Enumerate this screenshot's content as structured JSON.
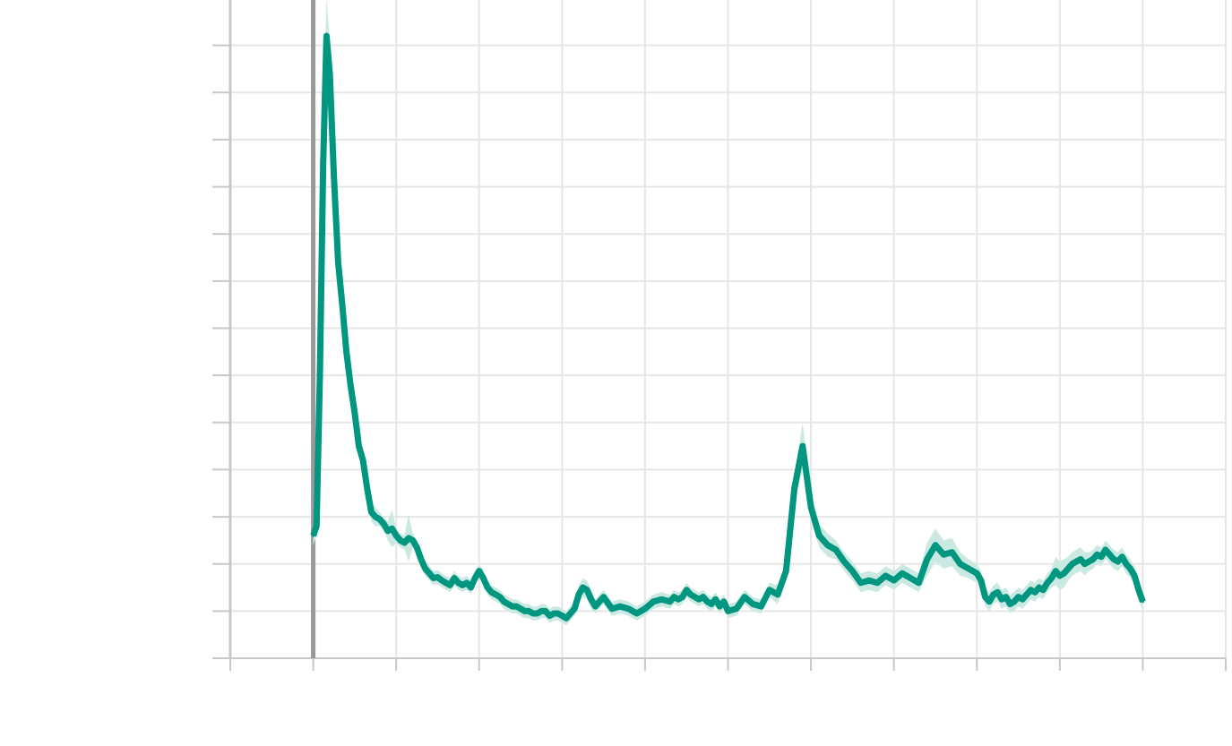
{
  "chart_data": {
    "type": "line",
    "title": "",
    "xlabel": "",
    "ylabel": "",
    "xlim": [
      -1,
      11
    ],
    "ylim": [
      0,
      14
    ],
    "grid": true,
    "legend": "none",
    "series": [
      {
        "color": "#00967f",
        "band_color": "#cbe9e3",
        "x": [
          0.0,
          0.04,
          0.08,
          0.12,
          0.16,
          0.2,
          0.25,
          0.3,
          0.35,
          0.4,
          0.45,
          0.5,
          0.55,
          0.6,
          0.65,
          0.7,
          0.75,
          0.8,
          0.85,
          0.9,
          0.95,
          1.0,
          1.05,
          1.1,
          1.15,
          1.2,
          1.25,
          1.3,
          1.35,
          1.4,
          1.45,
          1.5,
          1.55,
          1.6,
          1.65,
          1.7,
          1.75,
          1.8,
          1.85,
          1.9,
          1.95,
          2.0,
          2.05,
          2.1,
          2.15,
          2.2,
          2.25,
          2.3,
          2.35,
          2.4,
          2.45,
          2.5,
          2.55,
          2.6,
          2.65,
          2.7,
          2.75,
          2.8,
          2.85,
          2.9,
          2.95,
          3.0,
          3.05,
          3.1,
          3.15,
          3.2,
          3.25,
          3.3,
          3.35,
          3.4,
          3.5,
          3.6,
          3.7,
          3.8,
          3.9,
          4.0,
          4.1,
          4.2,
          4.3,
          4.35,
          4.4,
          4.45,
          4.5,
          4.55,
          4.6,
          4.65,
          4.7,
          4.75,
          4.8,
          4.85,
          4.9,
          4.95,
          5.0,
          5.1,
          5.2,
          5.3,
          5.4,
          5.5,
          5.6,
          5.7,
          5.8,
          5.9,
          6.0,
          6.1,
          6.2,
          6.3,
          6.4,
          6.5,
          6.6,
          6.7,
          6.8,
          6.9,
          7.0,
          7.1,
          7.2,
          7.3,
          7.4,
          7.5,
          7.6,
          7.7,
          7.8,
          7.9,
          8.0,
          8.05,
          8.1,
          8.15,
          8.2,
          8.25,
          8.3,
          8.35,
          8.4,
          8.45,
          8.5,
          8.55,
          8.6,
          8.65,
          8.7,
          8.75,
          8.8,
          8.85,
          8.9,
          8.95,
          9.0,
          9.05,
          9.1,
          9.15,
          9.2,
          9.25,
          9.3,
          9.35,
          9.4,
          9.45,
          9.5,
          9.55,
          9.6,
          9.65,
          9.7,
          9.75,
          9.8,
          9.85,
          9.9,
          9.95,
          10.0
        ],
        "values": [
          2.6,
          2.8,
          6.0,
          10.5,
          13.2,
          12.4,
          10.2,
          8.4,
          7.5,
          6.5,
          5.8,
          5.2,
          4.5,
          4.2,
          3.6,
          3.1,
          3.0,
          2.95,
          2.85,
          2.7,
          2.75,
          2.6,
          2.5,
          2.45,
          2.55,
          2.5,
          2.35,
          2.1,
          1.9,
          1.8,
          1.7,
          1.72,
          1.65,
          1.6,
          1.55,
          1.7,
          1.6,
          1.55,
          1.6,
          1.5,
          1.7,
          1.85,
          1.7,
          1.5,
          1.4,
          1.35,
          1.3,
          1.2,
          1.15,
          1.1,
          1.1,
          1.05,
          1.0,
          1.0,
          0.95,
          0.95,
          1.0,
          1.0,
          0.9,
          0.95,
          0.95,
          0.9,
          0.85,
          0.95,
          1.05,
          1.35,
          1.5,
          1.45,
          1.25,
          1.1,
          1.3,
          1.05,
          1.1,
          1.05,
          0.95,
          1.05,
          1.2,
          1.25,
          1.2,
          1.3,
          1.25,
          1.3,
          1.45,
          1.35,
          1.3,
          1.25,
          1.3,
          1.2,
          1.15,
          1.25,
          1.1,
          1.2,
          1.0,
          1.05,
          1.3,
          1.15,
          1.1,
          1.45,
          1.35,
          1.85,
          3.6,
          4.5,
          3.2,
          2.6,
          2.4,
          2.3,
          2.05,
          1.85,
          1.6,
          1.65,
          1.6,
          1.75,
          1.65,
          1.8,
          1.7,
          1.6,
          2.1,
          2.4,
          2.2,
          2.25,
          2.0,
          1.9,
          1.8,
          1.65,
          1.3,
          1.2,
          1.35,
          1.4,
          1.25,
          1.3,
          1.15,
          1.2,
          1.3,
          1.25,
          1.35,
          1.45,
          1.4,
          1.5,
          1.45,
          1.6,
          1.7,
          1.85,
          1.75,
          1.8,
          1.9,
          2.0,
          2.05,
          2.1,
          2.0,
          2.05,
          2.1,
          2.2,
          2.15,
          2.3,
          2.2,
          2.1,
          2.05,
          2.15,
          2.0,
          1.9,
          1.75,
          1.45,
          1.2
        ],
        "band_width": [
          0.2,
          0.2,
          0.6,
          0.9,
          0.8,
          0.7,
          0.6,
          0.5,
          0.4,
          0.35,
          0.3,
          0.3,
          0.25,
          0.25,
          0.2,
          0.2,
          0.2,
          0.15,
          0.15,
          0.2,
          0.4,
          0.15,
          0.15,
          0.15,
          0.5,
          0.15,
          0.15,
          0.15,
          0.15,
          0.15,
          0.15,
          0.15,
          0.15,
          0.15,
          0.15,
          0.15,
          0.15,
          0.15,
          0.15,
          0.15,
          0.15,
          0.15,
          0.15,
          0.15,
          0.15,
          0.15,
          0.15,
          0.15,
          0.15,
          0.15,
          0.15,
          0.15,
          0.15,
          0.15,
          0.15,
          0.15,
          0.15,
          0.15,
          0.15,
          0.15,
          0.15,
          0.15,
          0.15,
          0.15,
          0.15,
          0.2,
          0.2,
          0.2,
          0.2,
          0.15,
          0.15,
          0.15,
          0.15,
          0.15,
          0.15,
          0.15,
          0.15,
          0.15,
          0.15,
          0.15,
          0.15,
          0.15,
          0.15,
          0.15,
          0.15,
          0.15,
          0.15,
          0.15,
          0.15,
          0.15,
          0.15,
          0.15,
          0.15,
          0.15,
          0.15,
          0.15,
          0.15,
          0.15,
          0.2,
          0.2,
          0.3,
          0.5,
          0.3,
          0.25,
          0.25,
          0.2,
          0.2,
          0.2,
          0.2,
          0.2,
          0.2,
          0.2,
          0.2,
          0.2,
          0.2,
          0.2,
          0.35,
          0.35,
          0.3,
          0.3,
          0.25,
          0.2,
          0.2,
          0.2,
          0.2,
          0.2,
          0.2,
          0.2,
          0.2,
          0.2,
          0.2,
          0.2,
          0.2,
          0.2,
          0.2,
          0.2,
          0.2,
          0.2,
          0.2,
          0.2,
          0.2,
          0.3,
          0.3,
          0.3,
          0.25,
          0.25,
          0.25,
          0.25,
          0.25,
          0.2,
          0.2,
          0.2,
          0.2,
          0.2,
          0.2,
          0.2,
          0.2,
          0.2,
          0.2,
          0.2,
          0.2,
          0.2,
          0.2,
          0.2
        ]
      }
    ],
    "vertical_line": {
      "x": 0.0,
      "color": "#999999"
    },
    "colors": {
      "grid": "#e6e6e6",
      "axis": "#c8c8c8",
      "tick": "#c8c8c8"
    }
  }
}
